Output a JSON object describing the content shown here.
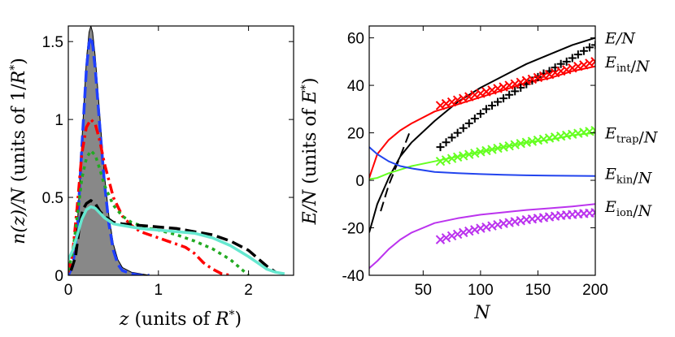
{
  "chart_data": [
    {
      "type": "line",
      "panel": "left",
      "xlim": [
        0,
        2.5
      ],
      "ylim": [
        0,
        1.6
      ],
      "xticks": [
        "0",
        "1",
        "2"
      ],
      "yticks": [
        "0",
        "0.5",
        "1",
        "1.5"
      ],
      "xlabel": {
        "var": "z",
        "rest": " (units of ",
        "var2": "R",
        "sup": "*",
        "end": ")"
      },
      "ylabel": {
        "var": "n(z)/N",
        "rest": " (units of 1/",
        "var2": "R",
        "sup": "*",
        "end": ")"
      },
      "series": [
        {
          "name": "filled density",
          "kind": "area",
          "color": "#888888",
          "x": [
            0,
            0.05,
            0.1,
            0.15,
            0.2,
            0.23,
            0.25,
            0.27,
            0.3,
            0.35,
            0.4,
            0.45,
            0.5,
            0.55,
            0.6,
            0.7,
            0.8,
            0.9,
            1.0,
            1.2
          ],
          "y": [
            0,
            0.06,
            0.32,
            0.85,
            1.38,
            1.56,
            1.6,
            1.56,
            1.4,
            1.02,
            0.65,
            0.38,
            0.2,
            0.1,
            0.05,
            0.02,
            0.01,
            0,
            0,
            0
          ]
        },
        {
          "name": "blue dashed",
          "kind": "dashed",
          "color": "#1f3fff",
          "x": [
            0,
            0.05,
            0.1,
            0.15,
            0.2,
            0.23,
            0.25,
            0.27,
            0.3,
            0.35,
            0.4,
            0.45,
            0.5,
            0.55,
            0.6,
            0.7,
            0.8,
            0.9
          ],
          "y": [
            0,
            0.06,
            0.3,
            0.82,
            1.32,
            1.49,
            1.53,
            1.48,
            1.32,
            0.95,
            0.6,
            0.33,
            0.16,
            0.07,
            0.03,
            0.01,
            0,
            0
          ]
        },
        {
          "name": "red dash-dot",
          "kind": "dashdot",
          "color": "#ff0000",
          "x": [
            0,
            0.05,
            0.1,
            0.15,
            0.2,
            0.25,
            0.3,
            0.35,
            0.4,
            0.5,
            0.6,
            0.7,
            0.8,
            0.9,
            1.0,
            1.1,
            1.2,
            1.3,
            1.4,
            1.5,
            1.6,
            1.7,
            1.8
          ],
          "y": [
            0.02,
            0.15,
            0.45,
            0.78,
            0.95,
            1.0,
            0.97,
            0.86,
            0.72,
            0.5,
            0.38,
            0.32,
            0.28,
            0.26,
            0.24,
            0.22,
            0.2,
            0.18,
            0.14,
            0.08,
            0.04,
            0.01,
            0
          ]
        },
        {
          "name": "green dotted",
          "kind": "dotted",
          "color": "#22aa22",
          "x": [
            0,
            0.05,
            0.1,
            0.15,
            0.2,
            0.25,
            0.3,
            0.35,
            0.4,
            0.5,
            0.6,
            0.7,
            0.8,
            0.9,
            1.0,
            1.2,
            1.4,
            1.6,
            1.8,
            1.9,
            2.0
          ],
          "y": [
            0.03,
            0.15,
            0.38,
            0.62,
            0.75,
            0.8,
            0.77,
            0.68,
            0.58,
            0.45,
            0.38,
            0.34,
            0.32,
            0.3,
            0.29,
            0.26,
            0.22,
            0.17,
            0.1,
            0.05,
            0
          ]
        },
        {
          "name": "black dashed",
          "kind": "dashed",
          "color": "#000000",
          "x": [
            0.03,
            0.08,
            0.12,
            0.16,
            0.2,
            0.25,
            0.3,
            0.35,
            0.4,
            0.5,
            0.6,
            0.8,
            1.0,
            1.2,
            1.4,
            1.6,
            1.8,
            2.0,
            2.1,
            2.2,
            2.3
          ],
          "y": [
            0.03,
            0.12,
            0.3,
            0.42,
            0.46,
            0.48,
            0.46,
            0.41,
            0.38,
            0.34,
            0.33,
            0.32,
            0.31,
            0.3,
            0.28,
            0.26,
            0.22,
            0.16,
            0.11,
            0.06,
            0.02
          ]
        },
        {
          "name": "cyan solid",
          "kind": "solid",
          "color": "#66e8d0",
          "x": [
            0,
            0.05,
            0.1,
            0.15,
            0.2,
            0.25,
            0.3,
            0.35,
            0.4,
            0.5,
            0.6,
            0.8,
            1.0,
            1.2,
            1.4,
            1.6,
            1.8,
            2.0,
            2.1,
            2.2,
            2.3,
            2.4
          ],
          "y": [
            0.1,
            0.16,
            0.26,
            0.36,
            0.42,
            0.44,
            0.43,
            0.4,
            0.37,
            0.33,
            0.32,
            0.3,
            0.29,
            0.28,
            0.27,
            0.24,
            0.19,
            0.12,
            0.08,
            0.04,
            0.02,
            0.01
          ]
        }
      ]
    },
    {
      "type": "line",
      "panel": "right",
      "xlim": [
        3,
        200
      ],
      "ylim": [
        -40,
        65
      ],
      "xticks": [
        50,
        100,
        150,
        200
      ],
      "yticks": [
        -40,
        -20,
        0,
        20,
        40,
        60
      ],
      "xlabel": "N",
      "ylabel": {
        "var": "E/N",
        "rest": " (units of ",
        "var2": "E",
        "sup": "*",
        "end": ")"
      },
      "legend": [
        {
          "main": "E/N",
          "sub": "",
          "tail": "",
          "value": 60
        },
        {
          "main": "E",
          "sub": "int",
          "tail": "/N",
          "value": 50
        },
        {
          "main": "E",
          "sub": "trap",
          "tail": "/N",
          "value": 20
        },
        {
          "main": "E",
          "sub": "kin",
          "tail": "/N",
          "value": 3
        },
        {
          "main": "E",
          "sub": "ion",
          "tail": "/N",
          "value": -11
        }
      ],
      "series": [
        {
          "name": "E/N",
          "kind": "solid",
          "color": "#000000",
          "x": [
            3,
            10,
            20,
            30,
            40,
            60,
            80,
            100,
            120,
            140,
            160,
            180,
            200
          ],
          "y": [
            -22,
            -10,
            1,
            10,
            16,
            25,
            33,
            39,
            44,
            49,
            53,
            57,
            60
          ]
        },
        {
          "name": "E/N small-N dashed",
          "kind": "dashed",
          "color": "#000000",
          "x": [
            13,
            20,
            30,
            38
          ],
          "y": [
            -13,
            -2,
            10,
            20
          ]
        },
        {
          "name": "E_int/N",
          "kind": "solid",
          "color": "#ff0000",
          "x": [
            3,
            10,
            20,
            30,
            40,
            60,
            80,
            100,
            120,
            140,
            160,
            180,
            200
          ],
          "y": [
            1,
            11,
            17,
            21,
            24,
            29,
            32,
            35,
            38,
            41,
            43,
            46,
            48
          ]
        },
        {
          "name": "E_trap/N",
          "kind": "solid",
          "color": "#66ff22",
          "x": [
            3,
            10,
            20,
            30,
            40,
            60,
            80,
            100,
            120,
            140,
            160,
            180,
            200
          ],
          "y": [
            0.5,
            1,
            3,
            4.5,
            6,
            8,
            10,
            12,
            14,
            16,
            17,
            19,
            20
          ]
        },
        {
          "name": "E_kin/N",
          "kind": "solid",
          "color": "#2244ee",
          "x": [
            3,
            10,
            20,
            30,
            40,
            60,
            80,
            100,
            120,
            140,
            160,
            180,
            200
          ],
          "y": [
            14,
            11,
            8,
            6,
            5,
            3.5,
            3,
            2.6,
            2.3,
            2.1,
            2,
            1.9,
            1.8
          ]
        },
        {
          "name": "E_ion/N",
          "kind": "solid",
          "color": "#bb33ee",
          "x": [
            3,
            10,
            20,
            30,
            40,
            60,
            80,
            100,
            120,
            140,
            160,
            180,
            200
          ],
          "y": [
            -37,
            -34,
            -29,
            -25,
            -22,
            -18,
            -16,
            -14.5,
            -13.5,
            -12.5,
            -11.8,
            -11,
            -10
          ]
        },
        {
          "name": "E/N data",
          "kind": "plus",
          "color": "#000000",
          "x": [
            65,
            70,
            75,
            80,
            85,
            90,
            95,
            100,
            105,
            110,
            115,
            120,
            125,
            130,
            135,
            140,
            145,
            150,
            155,
            160,
            165,
            170,
            175,
            180,
            185,
            190,
            195,
            200
          ],
          "y": [
            14,
            16,
            18,
            20,
            22,
            24,
            26,
            28,
            30,
            31.5,
            33,
            34.5,
            36,
            37.5,
            39,
            40.5,
            42,
            43.5,
            45,
            46,
            47.5,
            49,
            50,
            51.5,
            53,
            54.5,
            56,
            57
          ]
        },
        {
          "name": "E_int/N data",
          "kind": "cross",
          "color": "#ff0000",
          "x": [
            65,
            70,
            75,
            80,
            85,
            90,
            95,
            100,
            105,
            110,
            115,
            120,
            125,
            130,
            135,
            140,
            145,
            150,
            155,
            160,
            165,
            170,
            175,
            180,
            185,
            190,
            195,
            200
          ],
          "y": [
            31.5,
            32.3,
            33,
            33.8,
            34.5,
            35.2,
            36,
            36.6,
            37.3,
            38,
            38.7,
            39.3,
            40,
            40.6,
            41.3,
            42,
            42.6,
            43.3,
            44,
            44.6,
            45.3,
            46,
            46.6,
            47.3,
            48,
            48.6,
            49.3,
            50
          ]
        },
        {
          "name": "E_trap/N data",
          "kind": "cross",
          "color": "#66ff22",
          "x": [
            65,
            70,
            75,
            80,
            85,
            90,
            95,
            100,
            105,
            110,
            115,
            120,
            125,
            130,
            135,
            140,
            145,
            150,
            155,
            160,
            165,
            170,
            175,
            180,
            185,
            190,
            195,
            200
          ],
          "y": [
            8,
            8.6,
            9.2,
            9.8,
            10.3,
            10.9,
            11.4,
            12,
            12.5,
            13,
            13.5,
            14,
            14.5,
            15,
            15.5,
            16,
            16.4,
            16.9,
            17.3,
            17.8,
            18.2,
            18.6,
            19,
            19.4,
            19.8,
            20.2,
            20.6,
            21
          ]
        },
        {
          "name": "E_ion/N data",
          "kind": "cross",
          "color": "#bb33ee",
          "x": [
            65,
            70,
            75,
            80,
            85,
            90,
            95,
            100,
            105,
            110,
            115,
            120,
            125,
            130,
            135,
            140,
            145,
            150,
            155,
            160,
            165,
            170,
            175,
            180,
            185,
            190,
            195,
            200
          ],
          "y": [
            -25,
            -24.2,
            -23.4,
            -22.7,
            -22,
            -21.4,
            -20.8,
            -20.2,
            -19.7,
            -19.2,
            -18.7,
            -18.2,
            -17.8,
            -17.4,
            -17,
            -16.6,
            -16.3,
            -16,
            -15.7,
            -15.4,
            -15.1,
            -14.8,
            -14.6,
            -14.4,
            -14.2,
            -14,
            -13.8,
            -13.6
          ]
        }
      ]
    }
  ]
}
